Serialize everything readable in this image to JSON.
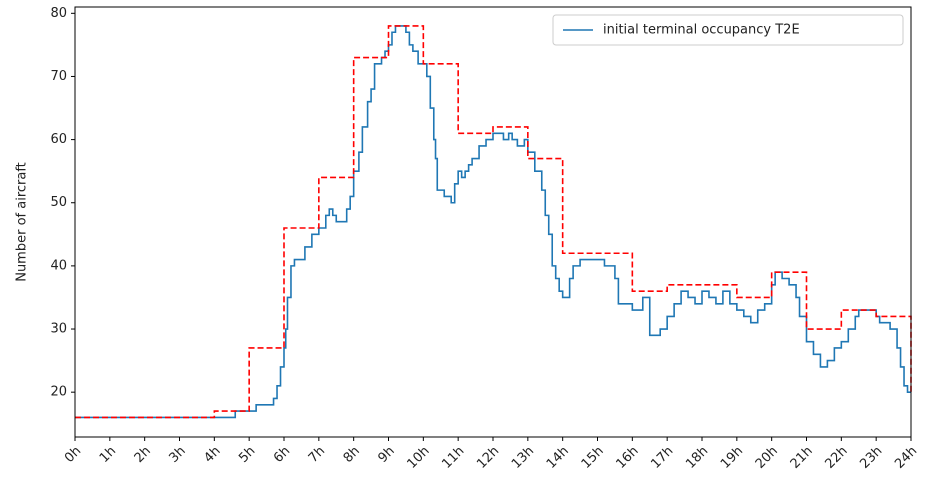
{
  "chart_data": {
    "type": "step",
    "ylabel": "Number of aircraft",
    "xlim": [
      0,
      24
    ],
    "ylim": [
      12.9,
      81
    ],
    "xticks": [
      {
        "value": 0,
        "label": "0h"
      },
      {
        "value": 1,
        "label": "1h"
      },
      {
        "value": 2,
        "label": "2h"
      },
      {
        "value": 3,
        "label": "3h"
      },
      {
        "value": 4,
        "label": "4h"
      },
      {
        "value": 5,
        "label": "5h"
      },
      {
        "value": 6,
        "label": "6h"
      },
      {
        "value": 7,
        "label": "7h"
      },
      {
        "value": 8,
        "label": "8h"
      },
      {
        "value": 9,
        "label": "9h"
      },
      {
        "value": 10,
        "label": "10h"
      },
      {
        "value": 11,
        "label": "11h"
      },
      {
        "value": 12,
        "label": "12h"
      },
      {
        "value": 13,
        "label": "13h"
      },
      {
        "value": 14,
        "label": "14h"
      },
      {
        "value": 15,
        "label": "15h"
      },
      {
        "value": 16,
        "label": "16h"
      },
      {
        "value": 17,
        "label": "17h"
      },
      {
        "value": 18,
        "label": "18h"
      },
      {
        "value": 19,
        "label": "19h"
      },
      {
        "value": 20,
        "label": "20h"
      },
      {
        "value": 21,
        "label": "21h"
      },
      {
        "value": 22,
        "label": "22h"
      },
      {
        "value": 23,
        "label": "23h"
      },
      {
        "value": 24,
        "label": "24h"
      }
    ],
    "yticks": [
      20,
      30,
      40,
      50,
      60,
      70,
      80
    ],
    "legend": "upper right",
    "series": [
      {
        "name": "initial terminal occupancy T2E",
        "color": "#1f77b4",
        "dash": "solid",
        "x": [
          0,
          4.6,
          5.2,
          5.7,
          5.8,
          5.9,
          6.0,
          6.05,
          6.1,
          6.2,
          6.3,
          6.6,
          6.8,
          7.0,
          7.2,
          7.3,
          7.4,
          7.5,
          7.8,
          7.9,
          8.0,
          8.15,
          8.25,
          8.4,
          8.5,
          8.6,
          8.8,
          8.9,
          9.0,
          9.1,
          9.2,
          9.5,
          9.6,
          9.7,
          9.85,
          10.1,
          10.2,
          10.3,
          10.35,
          10.4,
          10.6,
          10.8,
          10.9,
          11.0,
          11.1,
          11.2,
          11.3,
          11.4,
          11.6,
          11.8,
          12.0,
          12.3,
          12.45,
          12.55,
          12.7,
          12.9,
          13.0,
          13.2,
          13.4,
          13.5,
          13.6,
          13.7,
          13.8,
          13.9,
          14.0,
          14.2,
          14.3,
          14.5,
          15.0,
          15.2,
          15.5,
          15.6,
          16.0,
          16.3,
          16.5,
          16.8,
          17.0,
          17.2,
          17.4,
          17.6,
          17.8,
          18.0,
          18.2,
          18.4,
          18.6,
          18.8,
          19.0,
          19.2,
          19.4,
          19.6,
          19.8,
          20.0,
          20.1,
          20.3,
          20.5,
          20.7,
          20.8,
          21.0,
          21.2,
          21.4,
          21.6,
          21.8,
          22.0,
          22.2,
          22.4,
          22.5,
          23.0,
          23.1,
          23.4,
          23.6,
          23.7,
          23.8,
          23.9,
          24.0
        ],
        "values": [
          16,
          17,
          18,
          19,
          21,
          24,
          27,
          30,
          35,
          40,
          41,
          43,
          45,
          46,
          48,
          49,
          48,
          47,
          49,
          51,
          55,
          58,
          62,
          66,
          68,
          72,
          73,
          74,
          75,
          77,
          78,
          77,
          75,
          74,
          72,
          70,
          65,
          60,
          57,
          52,
          51,
          50,
          53,
          55,
          54,
          55,
          56,
          57,
          59,
          60,
          61,
          60,
          61,
          60,
          59,
          60,
          58,
          55,
          52,
          48,
          45,
          40,
          38,
          36,
          35,
          38,
          40,
          41,
          41,
          40,
          38,
          34,
          33,
          35,
          29,
          30,
          32,
          34,
          36,
          35,
          34,
          36,
          35,
          34,
          36,
          34,
          33,
          32,
          31,
          33,
          34,
          37,
          39,
          38,
          37,
          35,
          32,
          28,
          26,
          24,
          25,
          27,
          28,
          30,
          32,
          33,
          32,
          31,
          30,
          27,
          24,
          21,
          20,
          20
        ]
      },
      {
        "color": "#ff0000",
        "dash": "dashed",
        "x": [
          0,
          1,
          2,
          3,
          4,
          5,
          6,
          7,
          8,
          9,
          10,
          11,
          12,
          13,
          14,
          15,
          16,
          17,
          18,
          19,
          20,
          21,
          22,
          23,
          24
        ],
        "values": [
          16,
          16,
          16,
          16,
          17,
          27,
          46,
          54,
          73,
          78,
          72,
          61,
          62,
          57,
          42,
          42,
          36,
          37,
          37,
          35,
          39,
          30,
          33,
          32,
          20
        ]
      }
    ]
  }
}
